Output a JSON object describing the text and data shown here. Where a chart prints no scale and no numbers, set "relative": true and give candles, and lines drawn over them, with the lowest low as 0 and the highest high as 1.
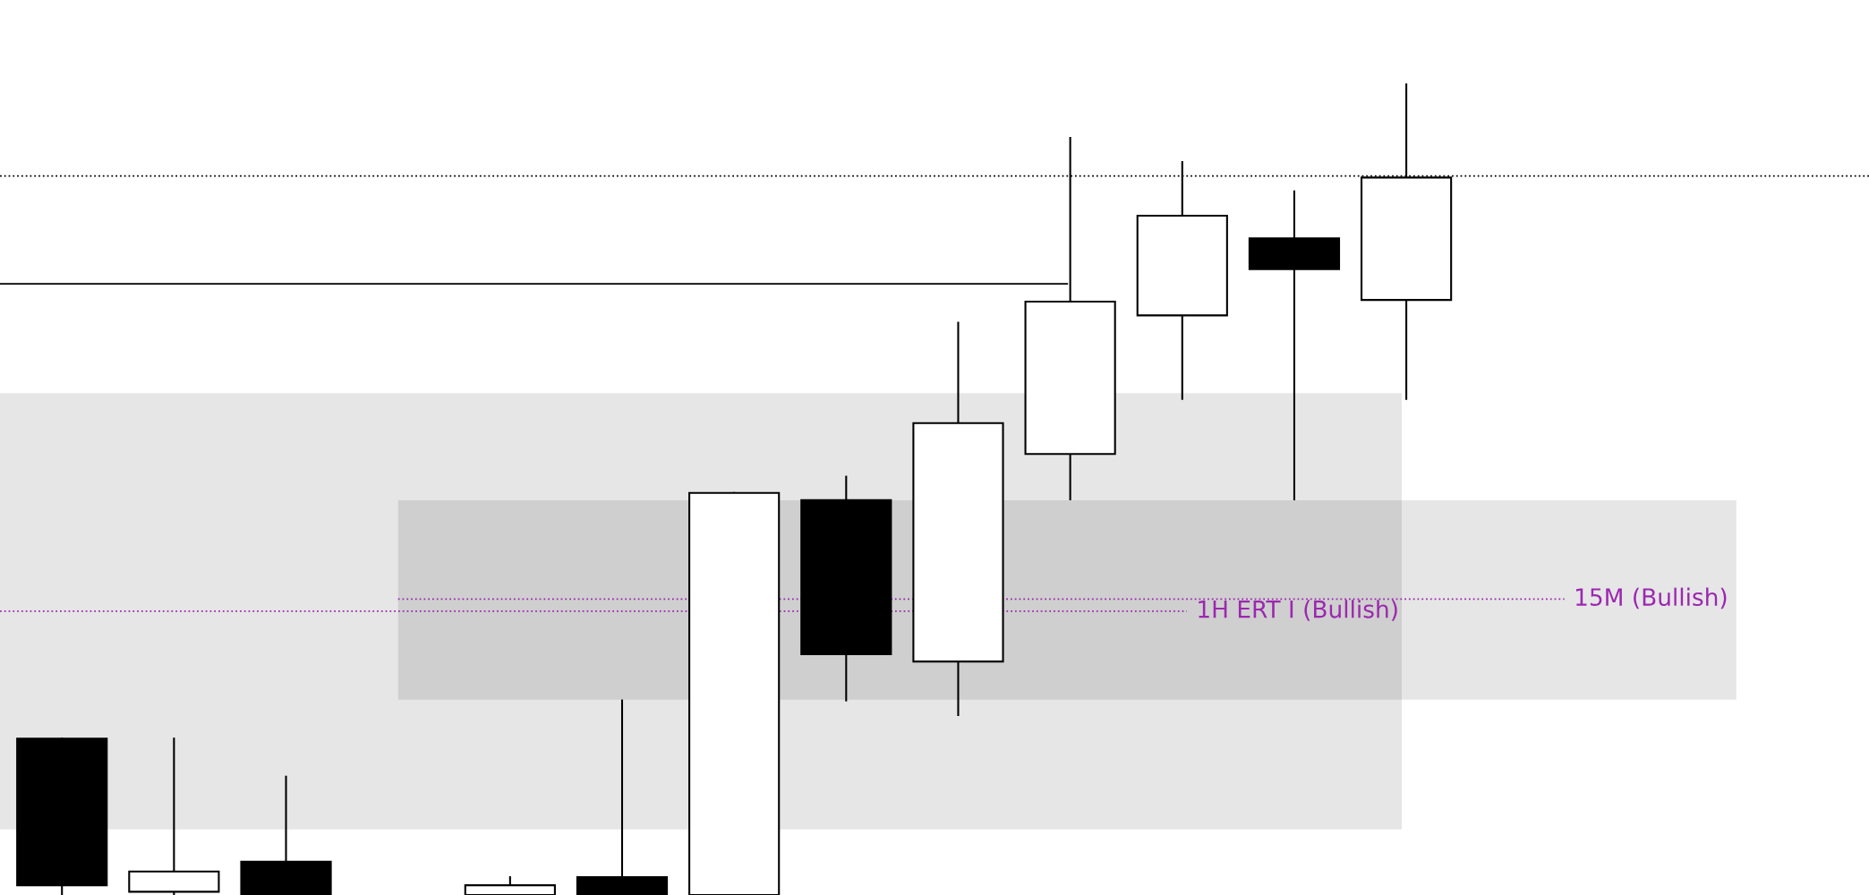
{
  "chart_data": {
    "type": "candlestick",
    "relative": true,
    "categories": [
      null,
      null,
      null,
      null,
      null,
      null,
      null,
      null,
      null,
      null,
      null,
      null,
      null
    ],
    "ohlc": [
      [
        0.193,
        0.193,
        0,
        0.012
      ],
      [
        0.004,
        0.193,
        0,
        0.029
      ],
      [
        0.041,
        0.146,
        0,
        0
      ],
      null,
      [
        0,
        0.022,
        0,
        0.012
      ],
      [
        0.022,
        0.24,
        0,
        0
      ],
      [
        0,
        0.496,
        0,
        0.496
      ],
      [
        0.487,
        0.516,
        0.24,
        0.297
      ],
      [
        0.288,
        0.706,
        0.222,
        0.582
      ],
      [
        0.544,
        0.934,
        0.488,
        0.732
      ],
      [
        0.715,
        0.904,
        0.612,
        0.838
      ],
      [
        0.81,
        0.868,
        0.488,
        0.772
      ],
      [
        0.734,
        1.0,
        0.612,
        0.885
      ]
    ],
    "ref_lines": [
      {
        "axis": "y",
        "value": 0.887,
        "color": "#000000",
        "line_style": "dotted"
      },
      {
        "axis": "y",
        "value": 0.754,
        "color": "#000000",
        "line_style": "solid"
      },
      {
        "axis": "y",
        "value": 0.35,
        "label": "1H ERT I (Bullish)",
        "color": "#9c27b0",
        "line_style": "dotted"
      },
      {
        "axis": "y",
        "value": 0.365,
        "label": "15M (Bullish)",
        "color": "#9c27b0",
        "line_style": "dotted"
      }
    ],
    "bands": [
      {
        "axis": "y",
        "from": 0.081,
        "to": 0.619,
        "color": "#e6e6e6"
      },
      {
        "axis": "y",
        "from": 0.241,
        "to": 0.487,
        "color": "#e6e6e6"
      }
    ],
    "grid": false,
    "legend": false
  }
}
